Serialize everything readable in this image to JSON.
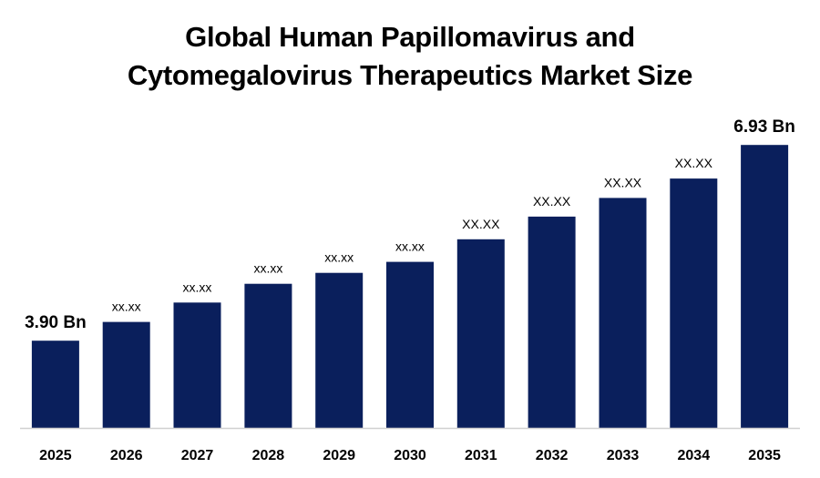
{
  "chart_data": {
    "type": "bar",
    "title_line1": "Global Human Papillomavirus and",
    "title_line2": "Cytomegalovirus Therapeutics Market Size",
    "categories": [
      "2025",
      "2026",
      "2027",
      "2028",
      "2029",
      "2030",
      "2031",
      "2032",
      "2033",
      "2034",
      "2035"
    ],
    "values": [
      3.9,
      4.19,
      4.49,
      4.78,
      4.95,
      5.12,
      5.47,
      5.82,
      6.11,
      6.41,
      6.93
    ],
    "data_labels": [
      "3.90 Bn",
      "xx.xx",
      "xx.xx",
      "xx.xx",
      "xx.xx",
      "xx.xx",
      "XX.XX",
      "XX.XX",
      "XX.XX",
      "XX.XX",
      "6.93 Bn"
    ],
    "bold_labels": [
      true,
      false,
      false,
      false,
      false,
      false,
      false,
      false,
      false,
      false,
      true
    ],
    "label_size": [
      "large",
      "small",
      "small",
      "small",
      "small",
      "small",
      "medium",
      "medium",
      "medium",
      "medium",
      "large"
    ],
    "xlabel": "",
    "ylabel": "",
    "ylim": [
      2.55,
      7.2
    ],
    "grid": false,
    "legend": "none",
    "bar_color": "#0a1f5c",
    "axis_color": "#d0d0d0"
  }
}
